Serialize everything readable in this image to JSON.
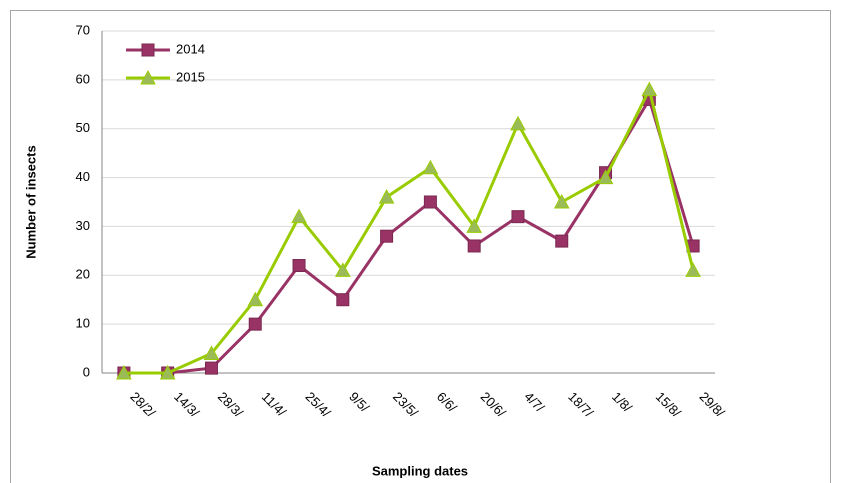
{
  "chart_data": {
    "type": "line",
    "xlabel": "Sampling dates",
    "ylabel": "Number of insects",
    "categories": [
      "28/2/",
      "14/3/",
      "28/3/",
      "11/4/",
      "25/4/",
      "9/5/",
      "23/5/",
      "6/6/",
      "20/6/",
      "4/7/",
      "18/7/",
      "1/8/",
      "15/8/",
      "29/8/"
    ],
    "series": [
      {
        "name": "2014",
        "color": "#993366",
        "marker": "square",
        "values": [
          0,
          0,
          1,
          10,
          22,
          15,
          28,
          35,
          26,
          32,
          27,
          41,
          56,
          26
        ]
      },
      {
        "name": "2015",
        "color": "#99cc00",
        "marker": "triangle",
        "values": [
          0,
          0,
          4,
          15,
          32,
          21,
          36,
          42,
          30,
          51,
          35,
          40,
          58,
          21
        ]
      }
    ],
    "ylim": [
      0,
      70
    ],
    "yticks": [
      0,
      10,
      20,
      30,
      40,
      50,
      60,
      70
    ],
    "grid": true,
    "legend": "upper left"
  }
}
